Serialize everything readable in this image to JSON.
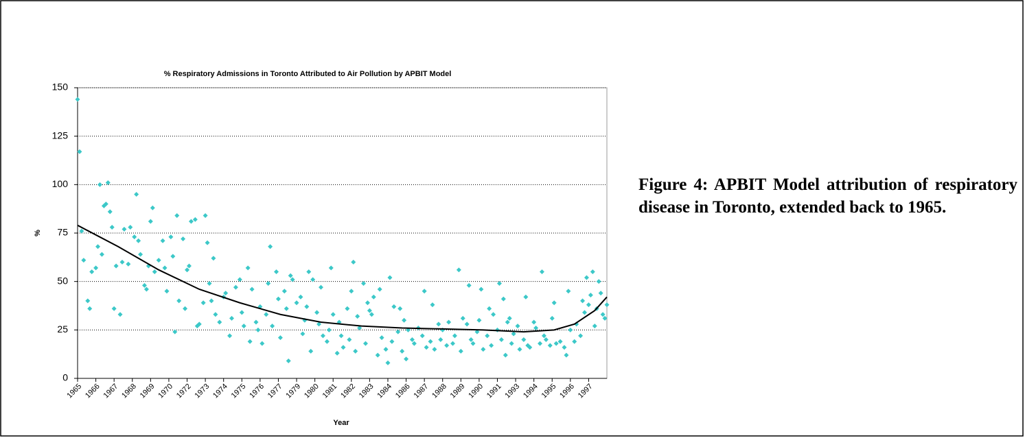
{
  "chart_data": {
    "type": "scatter",
    "title": "% Respiratory Admissions in Toronto Attributed to Air Pollution by APBIT Model",
    "xlabel": "Year",
    "ylabel": "%",
    "xlim": [
      0,
      261
    ],
    "ylim": [
      0,
      150
    ],
    "yticks": [
      0,
      25,
      50,
      75,
      100,
      125,
      150
    ],
    "xticks": [
      {
        "value": 0,
        "label": "1965"
      },
      {
        "value": 9,
        "label": "1966"
      },
      {
        "value": 18,
        "label": "1967"
      },
      {
        "value": 27,
        "label": "1968"
      },
      {
        "value": 36,
        "label": "1969"
      },
      {
        "value": 45,
        "label": "1970"
      },
      {
        "value": 54,
        "label": "1972"
      },
      {
        "value": 63,
        "label": "1973"
      },
      {
        "value": 72,
        "label": "1974"
      },
      {
        "value": 81,
        "label": "1975"
      },
      {
        "value": 90,
        "label": "1976"
      },
      {
        "value": 99,
        "label": "1977"
      },
      {
        "value": 108,
        "label": "1979"
      },
      {
        "value": 117,
        "label": "1980"
      },
      {
        "value": 126,
        "label": "1981"
      },
      {
        "value": 135,
        "label": "1982"
      },
      {
        "value": 144,
        "label": "1983"
      },
      {
        "value": 153,
        "label": "1984"
      },
      {
        "value": 162,
        "label": "1986"
      },
      {
        "value": 171,
        "label": "1987"
      },
      {
        "value": 180,
        "label": "1988"
      },
      {
        "value": 189,
        "label": "1989"
      },
      {
        "value": 198,
        "label": "1990"
      },
      {
        "value": 207,
        "label": "1991"
      },
      {
        "value": 216,
        "label": "1993"
      },
      {
        "value": 225,
        "label": "1994"
      },
      {
        "value": 234,
        "label": "1995"
      },
      {
        "value": 243,
        "label": "1996"
      },
      {
        "value": 252,
        "label": "1997"
      }
    ],
    "grid": true,
    "points": {
      "color": "#3cc8c8",
      "x": [
        0,
        1,
        2,
        3,
        5,
        6,
        7,
        9,
        10,
        11,
        12,
        13,
        14,
        15,
        16,
        17,
        18,
        19,
        21,
        22,
        23,
        25,
        26,
        28,
        29,
        30,
        31,
        33,
        34,
        35,
        36,
        37,
        38,
        40,
        42,
        43,
        44,
        46,
        47,
        48,
        49,
        50,
        52,
        53,
        54,
        55,
        56,
        58,
        59,
        60,
        62,
        63,
        64,
        65,
        66,
        67,
        68,
        70,
        72,
        73,
        75,
        76,
        78,
        80,
        81,
        82,
        84,
        85,
        86,
        88,
        89,
        90,
        91,
        93,
        94,
        95,
        96,
        98,
        99,
        100,
        102,
        103,
        104,
        105,
        106,
        108,
        110,
        111,
        112,
        113,
        114,
        115,
        116,
        118,
        119,
        120,
        121,
        123,
        124,
        125,
        126,
        128,
        129,
        130,
        131,
        133,
        134,
        135,
        136,
        137,
        138,
        139,
        141,
        142,
        143,
        144,
        145,
        146,
        148,
        149,
        150,
        152,
        153,
        154,
        155,
        156,
        158,
        159,
        160,
        161,
        162,
        163,
        165,
        166,
        168,
        170,
        171,
        172,
        174,
        175,
        176,
        178,
        179,
        180,
        182,
        183,
        185,
        186,
        188,
        189,
        190,
        192,
        193,
        194,
        195,
        197,
        198,
        199,
        200,
        202,
        203,
        204,
        205,
        207,
        208,
        209,
        210,
        211,
        212,
        213,
        214,
        215,
        217,
        218,
        220,
        221,
        222,
        223,
        225,
        226,
        228,
        229,
        230,
        231,
        233,
        234,
        235,
        236,
        238,
        240,
        241,
        242,
        243,
        245,
        246,
        248,
        249,
        250,
        251,
        252,
        253,
        254,
        255,
        256,
        257,
        258,
        259,
        260,
        261
      ],
      "y": [
        144,
        117,
        76,
        61,
        40,
        36,
        55,
        57,
        68,
        100,
        64,
        89,
        90,
        101,
        86,
        78,
        36,
        58,
        33,
        60,
        77,
        59,
        78,
        73,
        95,
        71,
        64,
        48,
        46,
        58,
        81,
        88,
        55,
        61,
        71,
        57,
        45,
        73,
        63,
        24,
        84,
        40,
        72,
        36,
        56,
        58,
        81,
        82,
        27,
        28,
        39,
        84,
        70,
        49,
        40,
        62,
        33,
        29,
        42,
        44,
        22,
        31,
        47,
        51,
        34,
        27,
        57,
        19,
        46,
        29,
        25,
        37,
        18,
        33,
        49,
        68,
        27,
        55,
        41,
        21,
        45,
        36,
        9,
        53,
        51,
        39,
        42,
        23,
        30,
        37,
        55,
        14,
        51,
        34,
        28,
        47,
        22,
        19,
        25,
        57,
        33,
        13,
        29,
        22,
        16,
        36,
        20,
        45,
        60,
        14,
        32,
        26,
        49,
        18,
        39,
        35,
        33,
        42,
        12,
        46,
        21,
        15,
        8,
        52,
        19,
        37,
        24,
        36,
        14,
        30,
        10,
        25,
        20,
        18,
        26,
        22,
        45,
        16,
        19,
        38,
        15,
        28,
        20,
        25,
        17,
        29,
        18,
        22,
        56,
        14,
        31,
        28,
        48,
        20,
        18,
        24,
        30,
        46,
        15,
        22,
        36,
        17,
        33,
        25,
        49,
        20,
        41,
        12,
        29,
        31,
        18,
        23,
        27,
        15,
        20,
        42,
        17,
        16,
        29,
        26,
        18,
        55,
        22,
        20,
        17,
        31,
        39,
        18,
        19,
        16,
        12,
        45,
        25,
        19,
        28,
        22,
        40,
        34,
        52,
        38,
        43,
        55,
        27,
        36,
        50,
        44,
        33,
        31,
        38
      ]
    },
    "trend": {
      "color": "#000000",
      "x": [
        0,
        20,
        40,
        60,
        80,
        100,
        120,
        140,
        160,
        180,
        200,
        220,
        235,
        245,
        255,
        261
      ],
      "y": [
        79,
        68,
        56,
        46,
        39,
        33,
        29,
        27,
        26,
        25.5,
        25,
        24,
        25,
        28,
        35,
        42
      ]
    }
  },
  "caption": "Figure 4: APBIT Model attribution of respiratory disease in Toronto, extended back to 1965."
}
